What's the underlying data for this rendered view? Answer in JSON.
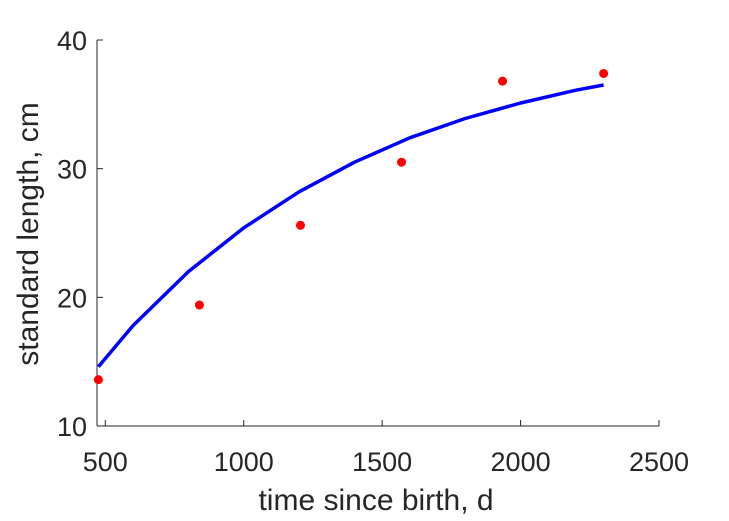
{
  "chart_data": {
    "type": "scatter",
    "title": "",
    "xlabel": "time since birth, d",
    "ylabel": "standard length, cm",
    "xlim": [
      470,
      2500
    ],
    "ylim": [
      10,
      40
    ],
    "xticks": [
      500,
      1000,
      1500,
      2000,
      2500
    ],
    "yticks": [
      10,
      20,
      30,
      40
    ],
    "grid": false,
    "legend": "none",
    "series": [
      {
        "kind": "scatter",
        "color": "#ff0000",
        "x": [
          475,
          840,
          1205,
          1570,
          1935,
          2300
        ],
        "y": [
          13.6,
          19.4,
          25.6,
          30.5,
          36.8,
          37.4
        ]
      },
      {
        "kind": "line",
        "color": "#0000ff",
        "x": [
          475,
          600,
          800,
          1000,
          1200,
          1400,
          1600,
          1800,
          2000,
          2200,
          2300
        ],
        "y": [
          14.6,
          17.8,
          22.0,
          25.4,
          28.2,
          30.5,
          32.4,
          33.9,
          35.1,
          36.1,
          36.5
        ]
      }
    ]
  }
}
